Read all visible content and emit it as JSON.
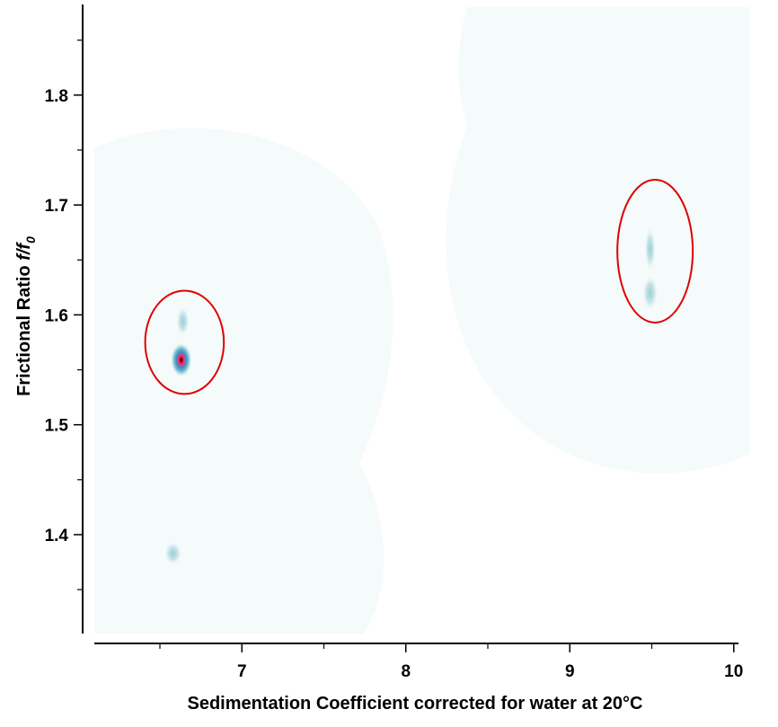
{
  "chart_data": {
    "type": "heatmap",
    "title": "",
    "xlabel": "Sedimentation Coefficient corrected for water at 20°C",
    "ylabel_main": "Frictional Ratio ",
    "ylabel_italic": "f/f",
    "ylabel_sub": "0",
    "xlim": [
      6.1,
      10.1
    ],
    "ylim": [
      1.31,
      1.88
    ],
    "x_ticks": [
      7,
      8,
      9,
      10
    ],
    "x_tick_labels": [
      "7",
      "8",
      "9",
      "10"
    ],
    "x_minor_ticks": [
      6.5,
      7.5,
      8.5,
      9.5
    ],
    "y_ticks": [
      1.4,
      1.5,
      1.6,
      1.7,
      1.8
    ],
    "y_tick_labels": [
      "1.4",
      "1.5",
      "1.6",
      "1.7",
      "1.8"
    ],
    "y_minor_ticks": [
      1.35,
      1.45,
      1.55,
      1.65,
      1.75,
      1.85
    ],
    "grid": false,
    "colors": {
      "background_field": "#f5fafa",
      "low": "#a8d4d8",
      "mid": "#3aa0c8",
      "high": "#e0205a",
      "peak": "#000000",
      "ellipse": "#e00000"
    },
    "peaks": [
      {
        "x": 6.63,
        "y": 1.559,
        "intensity": 1.0,
        "sx": 0.05,
        "sy": 0.012
      },
      {
        "x": 6.64,
        "y": 1.594,
        "intensity": 0.25,
        "sx": 0.03,
        "sy": 0.01
      },
      {
        "x": 6.58,
        "y": 1.383,
        "intensity": 0.12,
        "sx": 0.04,
        "sy": 0.008
      },
      {
        "x": 9.49,
        "y": 1.62,
        "intensity": 0.3,
        "sx": 0.035,
        "sy": 0.012
      },
      {
        "x": 9.49,
        "y": 1.66,
        "intensity": 0.12,
        "sx": 0.025,
        "sy": 0.015
      }
    ],
    "annotations": [
      {
        "type": "ellipse",
        "cx": 6.65,
        "cy": 1.575,
        "rx": 0.24,
        "ry": 0.047
      },
      {
        "type": "ellipse",
        "cx": 9.52,
        "cy": 1.658,
        "rx": 0.23,
        "ry": 0.065
      }
    ]
  }
}
